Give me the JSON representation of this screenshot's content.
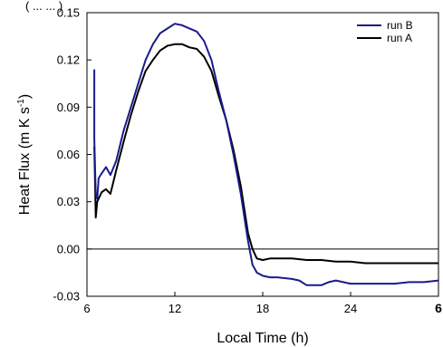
{
  "chart_data": {
    "type": "line",
    "top_text": "( ... ... )",
    "xlabel": "Local Time (h)",
    "ylabel_main": "Heat Flux (m K s",
    "ylabel_sup": "-1",
    "ylabel_close": ")",
    "xlim": [
      6,
      30
    ],
    "ylim": [
      -0.03,
      0.15
    ],
    "xticks": [
      6,
      12,
      18,
      24
    ],
    "xtick_labels": [
      "6",
      "12",
      "18",
      "24"
    ],
    "x_cut_label": "6",
    "yticks": [
      -0.03,
      0.0,
      0.03,
      0.06,
      0.09,
      0.12,
      0.15
    ],
    "ytick_labels": [
      "-0.03",
      "0.00",
      "0.03",
      "0.06",
      "0.09",
      "0.12",
      "0.15"
    ],
    "zero_line": 0.0,
    "legend_position": "top-right",
    "series": [
      {
        "name": "run B",
        "color": "#1a1a8c",
        "x": [
          6.5,
          6.5,
          6.6,
          6.7,
          6.8,
          7.0,
          7.3,
          7.6,
          8.0,
          8.5,
          9.0,
          9.5,
          10.0,
          10.5,
          11.0,
          11.5,
          12.0,
          12.5,
          13.0,
          13.5,
          14.0,
          14.5,
          15.0,
          15.5,
          16.0,
          16.5,
          17.0,
          17.3,
          17.6,
          18.0,
          18.5,
          19.0,
          20.0,
          20.5,
          21.0,
          21.5,
          22.0,
          22.5,
          23.0,
          23.5,
          24.0,
          25.0,
          26.0,
          27.0,
          28.0,
          29.0,
          30.0
        ],
        "y": [
          0.114,
          0.07,
          0.035,
          0.032,
          0.045,
          0.048,
          0.052,
          0.047,
          0.056,
          0.075,
          0.09,
          0.105,
          0.12,
          0.13,
          0.137,
          0.14,
          0.143,
          0.142,
          0.14,
          0.138,
          0.132,
          0.12,
          0.1,
          0.082,
          0.06,
          0.035,
          0.005,
          -0.01,
          -0.015,
          -0.017,
          -0.018,
          -0.018,
          -0.019,
          -0.02,
          -0.023,
          -0.023,
          -0.023,
          -0.021,
          -0.02,
          -0.021,
          -0.022,
          -0.022,
          -0.022,
          -0.022,
          -0.021,
          -0.021,
          -0.02
        ]
      },
      {
        "name": "run A",
        "color": "#000000",
        "x": [
          6.5,
          6.6,
          6.7,
          6.8,
          7.0,
          7.3,
          7.6,
          8.0,
          8.5,
          9.0,
          9.5,
          10.0,
          10.5,
          11.0,
          11.5,
          12.0,
          12.5,
          13.0,
          13.5,
          14.0,
          14.5,
          15.0,
          15.5,
          16.0,
          16.5,
          17.0,
          17.3,
          17.6,
          18.0,
          18.5,
          19.0,
          20.0,
          21.0,
          22.0,
          23.0,
          24.0,
          25.0,
          26.0,
          27.0,
          28.0,
          29.0,
          30.0
        ],
        "y": [
          0.065,
          0.02,
          0.03,
          0.032,
          0.036,
          0.038,
          0.035,
          0.05,
          0.068,
          0.085,
          0.1,
          0.113,
          0.12,
          0.126,
          0.129,
          0.13,
          0.13,
          0.128,
          0.127,
          0.122,
          0.113,
          0.097,
          0.082,
          0.063,
          0.04,
          0.01,
          0.0,
          -0.006,
          -0.007,
          -0.006,
          -0.006,
          -0.006,
          -0.007,
          -0.007,
          -0.008,
          -0.008,
          -0.009,
          -0.009,
          -0.009,
          -0.009,
          -0.009,
          -0.009
        ]
      }
    ]
  }
}
